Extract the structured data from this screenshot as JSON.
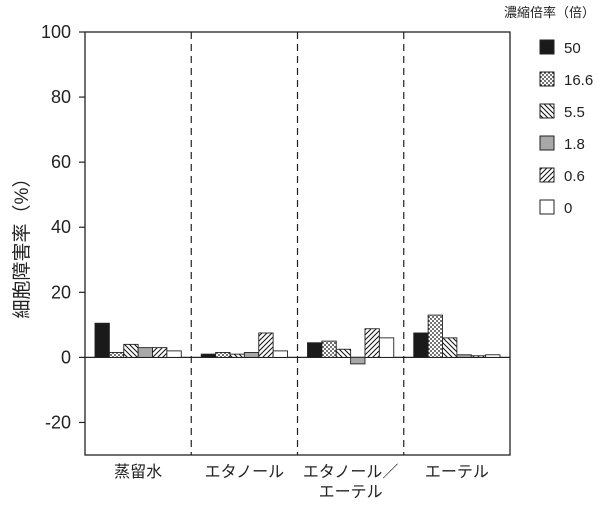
{
  "chart_data": {
    "type": "bar",
    "ylabel": "細胞障害率（%）",
    "ylim": [
      -30,
      100
    ],
    "yticks": [
      "100",
      "80",
      "60",
      "40",
      "20",
      "0",
      "-20"
    ],
    "categories": [
      {
        "label_lines": [
          "蒸留水"
        ]
      },
      {
        "label_lines": [
          "エタノール"
        ]
      },
      {
        "label_lines": [
          "エタノール／",
          "エーテル"
        ]
      },
      {
        "label_lines": [
          "エーテル"
        ]
      }
    ],
    "legend": {
      "title": "濃縮倍率（倍）",
      "position": "right"
    },
    "series": [
      {
        "name": "50",
        "pattern": "solid",
        "values": [
          10.5,
          1.0,
          4.5,
          7.5
        ]
      },
      {
        "name": "16.6",
        "pattern": "dots",
        "values": [
          1.5,
          1.5,
          5.0,
          13.0
        ]
      },
      {
        "name": "5.5",
        "pattern": "backhatch",
        "values": [
          4.0,
          1.0,
          2.5,
          6.0
        ]
      },
      {
        "name": "1.8",
        "pattern": "gray",
        "values": [
          3.0,
          1.5,
          -2.0,
          0.8
        ]
      },
      {
        "name": "0.6",
        "pattern": "hatch",
        "values": [
          3.0,
          7.5,
          8.8,
          0.5
        ]
      },
      {
        "name": "0",
        "pattern": "white",
        "values": [
          2.0,
          2.0,
          6.0,
          0.8
        ]
      }
    ],
    "grid": false
  }
}
